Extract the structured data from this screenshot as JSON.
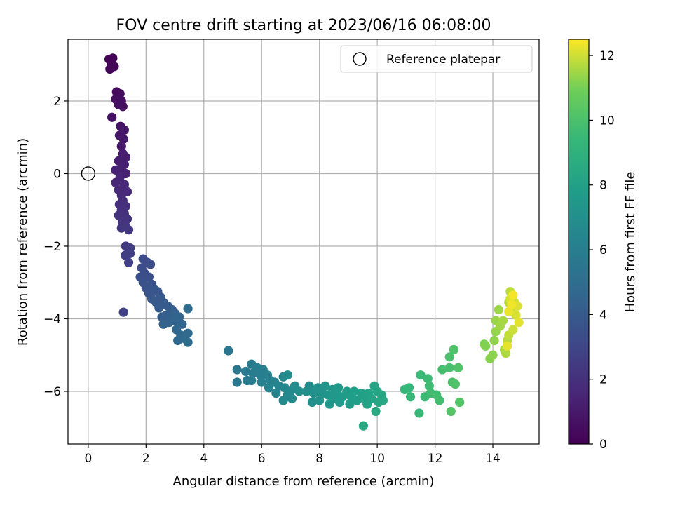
{
  "chart_data": {
    "type": "scatter",
    "title": "FOV centre drift starting at 2023/06/16 06:08:00",
    "xlabel": "Angular distance from reference (arcmin)",
    "ylabel": "Rotation from reference (arcmin)",
    "xlim": [
      -0.7,
      15.6
    ],
    "ylim": [
      -7.45,
      3.7
    ],
    "xticks": [
      0,
      2,
      4,
      6,
      8,
      10,
      12,
      14
    ],
    "yticks": [
      -6,
      -4,
      -2,
      0,
      2
    ],
    "xtick_labels": [
      "0",
      "2",
      "4",
      "6",
      "8",
      "10",
      "12",
      "14"
    ],
    "ytick_labels": [
      "−6",
      "−4",
      "−2",
      "0",
      "2"
    ],
    "grid": true,
    "legend": {
      "position": "top-right",
      "entries": [
        "Reference platepar"
      ]
    },
    "reference_point": {
      "name": "Reference platepar",
      "x": 0,
      "y": 0,
      "marker": "open-circle"
    },
    "colorbar": {
      "label": "Hours from first FF file",
      "range": [
        0,
        12.5
      ],
      "ticks": [
        0,
        2,
        4,
        6,
        8,
        10,
        12
      ],
      "tick_labels": [
        "0",
        "2",
        "4",
        "6",
        "8",
        "10",
        "12"
      ],
      "colormap": "viridis"
    },
    "series": [
      {
        "points": [
          [
            0.72,
            3.15,
            0.0
          ],
          [
            0.85,
            3.18,
            0.05
          ],
          [
            0.8,
            3.05,
            0.1
          ],
          [
            0.9,
            2.95,
            0.15
          ],
          [
            0.75,
            2.88,
            0.2
          ],
          [
            0.98,
            2.25,
            0.35
          ],
          [
            1.1,
            2.2,
            0.4
          ],
          [
            0.95,
            2.05,
            0.45
          ],
          [
            1.15,
            2.0,
            0.5
          ],
          [
            1.05,
            1.9,
            0.55
          ],
          [
            1.2,
            1.85,
            0.6
          ],
          [
            0.82,
            1.55,
            0.65
          ],
          [
            1.12,
            1.3,
            0.8
          ],
          [
            1.25,
            1.2,
            0.85
          ],
          [
            1.08,
            1.05,
            0.9
          ],
          [
            1.22,
            0.95,
            0.95
          ],
          [
            1.15,
            0.75,
            1.0
          ],
          [
            1.2,
            0.55,
            1.1
          ],
          [
            1.3,
            0.45,
            1.15
          ],
          [
            1.05,
            0.35,
            1.2
          ],
          [
            1.25,
            0.25,
            1.25
          ],
          [
            1.15,
            0.15,
            1.3
          ],
          [
            0.95,
            0.1,
            1.35
          ],
          [
            1.3,
            0.0,
            1.4
          ],
          [
            1.1,
            -0.1,
            1.5
          ],
          [
            0.95,
            -0.25,
            1.55
          ],
          [
            1.25,
            -0.3,
            1.6
          ],
          [
            1.05,
            -0.45,
            1.65
          ],
          [
            1.35,
            -0.5,
            1.7
          ],
          [
            1.15,
            -0.6,
            1.75
          ],
          [
            1.2,
            -0.75,
            1.85
          ],
          [
            1.08,
            -0.85,
            1.9
          ],
          [
            1.3,
            -0.9,
            1.95
          ],
          [
            1.15,
            -1.0,
            2.0
          ],
          [
            1.25,
            -1.1,
            2.05
          ],
          [
            1.05,
            -1.15,
            2.1
          ],
          [
            1.35,
            -1.25,
            2.15
          ],
          [
            1.18,
            -1.35,
            2.2
          ],
          [
            1.3,
            -1.45,
            2.25
          ],
          [
            1.15,
            -1.5,
            2.3
          ],
          [
            1.4,
            -1.55,
            2.35
          ],
          [
            1.3,
            -2.0,
            2.5
          ],
          [
            1.45,
            -2.05,
            2.55
          ],
          [
            1.28,
            -2.25,
            2.6
          ],
          [
            1.45,
            -2.2,
            2.65
          ],
          [
            1.4,
            -2.45,
            2.7
          ],
          [
            1.9,
            -2.35,
            3.2
          ],
          [
            2.05,
            -2.45,
            3.25
          ],
          [
            1.85,
            -2.6,
            3.3
          ],
          [
            2.15,
            -2.5,
            3.35
          ],
          [
            1.95,
            -2.75,
            3.4
          ],
          [
            1.8,
            -2.85,
            3.45
          ],
          [
            2.1,
            -2.85,
            3.5
          ],
          [
            1.9,
            -3.0,
            3.55
          ],
          [
            2.2,
            -3.05,
            3.6
          ],
          [
            2.0,
            -3.15,
            3.65
          ],
          [
            2.3,
            -3.2,
            3.7
          ],
          [
            2.1,
            -3.3,
            3.75
          ],
          [
            2.4,
            -3.25,
            3.8
          ],
          [
            2.2,
            -3.45,
            3.85
          ],
          [
            2.5,
            -3.4,
            3.9
          ],
          [
            2.35,
            -3.55,
            3.95
          ],
          [
            2.6,
            -3.55,
            4.0
          ],
          [
            2.45,
            -3.7,
            4.05
          ],
          [
            2.75,
            -3.65,
            4.1
          ],
          [
            2.9,
            -3.75,
            4.15
          ],
          [
            2.55,
            -3.95,
            4.2
          ],
          [
            2.7,
            -3.9,
            4.25
          ],
          [
            2.85,
            -4.0,
            4.3
          ],
          [
            3.0,
            -3.85,
            4.35
          ],
          [
            2.6,
            -4.15,
            4.4
          ],
          [
            2.8,
            -4.1,
            4.45
          ],
          [
            3.0,
            -4.05,
            4.5
          ],
          [
            3.15,
            -3.95,
            4.55
          ],
          [
            3.25,
            -4.15,
            4.6
          ],
          [
            3.05,
            -4.3,
            4.65
          ],
          [
            3.2,
            -4.45,
            4.7
          ],
          [
            3.1,
            -4.6,
            4.75
          ],
          [
            3.35,
            -4.55,
            4.8
          ],
          [
            3.45,
            -4.4,
            4.85
          ],
          [
            3.45,
            -4.65,
            4.9
          ],
          [
            3.45,
            -3.72,
            4.95
          ],
          [
            1.22,
            -3.82,
            2.8
          ],
          [
            4.85,
            -4.88,
            5.5
          ],
          [
            5.15,
            -5.4,
            5.6
          ],
          [
            5.15,
            -5.75,
            5.65
          ],
          [
            5.45,
            -5.45,
            5.7
          ],
          [
            5.5,
            -5.7,
            5.75
          ],
          [
            5.65,
            -5.25,
            5.8
          ],
          [
            5.7,
            -5.5,
            5.85
          ],
          [
            5.65,
            -5.7,
            5.9
          ],
          [
            5.85,
            -5.35,
            5.95
          ],
          [
            5.95,
            -5.55,
            6.0
          ],
          [
            6.05,
            -5.4,
            6.05
          ],
          [
            6.0,
            -5.75,
            6.1
          ],
          [
            6.2,
            -5.55,
            6.15
          ],
          [
            6.3,
            -5.7,
            6.2
          ],
          [
            6.25,
            -5.9,
            6.25
          ],
          [
            6.45,
            -5.75,
            6.3
          ],
          [
            6.5,
            -6.05,
            6.35
          ],
          [
            6.6,
            -5.85,
            6.4
          ],
          [
            6.75,
            -5.6,
            6.45
          ],
          [
            6.8,
            -5.9,
            6.5
          ],
          [
            6.9,
            -6.1,
            6.55
          ],
          [
            6.75,
            -6.25,
            6.6
          ],
          [
            7.0,
            -6.0,
            6.65
          ],
          [
            7.05,
            -6.2,
            6.7
          ],
          [
            6.9,
            -5.55,
            6.75
          ],
          [
            7.15,
            -5.85,
            6.8
          ],
          [
            7.3,
            -6.0,
            6.85
          ],
          [
            7.55,
            -6.0,
            6.9
          ],
          [
            7.65,
            -5.85,
            6.95
          ],
          [
            7.75,
            -6.3,
            7.0
          ],
          [
            7.8,
            -6.05,
            7.05
          ],
          [
            7.95,
            -5.9,
            7.1
          ],
          [
            8.0,
            -6.25,
            7.15
          ],
          [
            8.1,
            -6.05,
            7.2
          ],
          [
            8.2,
            -5.85,
            7.25
          ],
          [
            8.3,
            -6.1,
            7.3
          ],
          [
            8.35,
            -6.35,
            7.35
          ],
          [
            8.45,
            -5.95,
            7.4
          ],
          [
            8.5,
            -6.2,
            7.45
          ],
          [
            8.6,
            -6.05,
            7.5
          ],
          [
            8.65,
            -5.9,
            7.55
          ],
          [
            8.7,
            -6.3,
            7.6
          ],
          [
            8.8,
            -6.15,
            7.65
          ],
          [
            8.95,
            -6.0,
            7.7
          ],
          [
            9.05,
            -6.35,
            7.75
          ],
          [
            9.1,
            -6.15,
            7.8
          ],
          [
            9.2,
            -6.0,
            7.85
          ],
          [
            9.3,
            -6.25,
            7.9
          ],
          [
            9.45,
            -6.05,
            7.95
          ],
          [
            9.55,
            -6.2,
            8.0
          ],
          [
            9.65,
            -6.35,
            8.05
          ],
          [
            9.7,
            -6.05,
            8.1
          ],
          [
            9.8,
            -6.2,
            8.15
          ],
          [
            9.9,
            -5.85,
            8.2
          ],
          [
            10.0,
            -6.0,
            8.25
          ],
          [
            10.05,
            -6.3,
            8.3
          ],
          [
            10.15,
            -6.1,
            8.35
          ],
          [
            10.2,
            -6.25,
            8.4
          ],
          [
            9.52,
            -6.95,
            8.45
          ],
          [
            9.95,
            -6.55,
            8.5
          ],
          [
            10.95,
            -5.95,
            9.3
          ],
          [
            11.1,
            -5.9,
            9.35
          ],
          [
            11.15,
            -6.15,
            9.4
          ],
          [
            11.45,
            -6.6,
            9.45
          ],
          [
            11.5,
            -5.55,
            9.5
          ],
          [
            11.65,
            -6.15,
            9.55
          ],
          [
            11.75,
            -5.65,
            9.6
          ],
          [
            11.8,
            -5.85,
            9.65
          ],
          [
            11.85,
            -6.05,
            9.7
          ],
          [
            12.05,
            -6.1,
            9.75
          ],
          [
            12.15,
            -6.25,
            9.8
          ],
          [
            12.25,
            -5.4,
            9.85
          ],
          [
            12.5,
            -5.35,
            9.9
          ],
          [
            12.5,
            -5.05,
            9.95
          ],
          [
            12.6,
            -5.75,
            10.0
          ],
          [
            12.65,
            -4.85,
            10.05
          ],
          [
            12.7,
            -5.8,
            10.1
          ],
          [
            12.8,
            -5.35,
            10.15
          ],
          [
            12.85,
            -6.3,
            10.2
          ],
          [
            12.55,
            -6.55,
            10.25
          ],
          [
            13.7,
            -4.7,
            11.1
          ],
          [
            13.75,
            -4.75,
            11.15
          ],
          [
            13.9,
            -5.1,
            11.2
          ],
          [
            14.0,
            -5.0,
            11.25
          ],
          [
            14.05,
            -4.6,
            11.3
          ],
          [
            14.1,
            -4.35,
            11.35
          ],
          [
            14.1,
            -4.05,
            11.4
          ],
          [
            14.2,
            -3.75,
            11.45
          ],
          [
            14.25,
            -4.2,
            11.5
          ],
          [
            14.35,
            -4.05,
            11.55
          ],
          [
            14.4,
            -4.85,
            11.6
          ],
          [
            14.45,
            -4.95,
            11.65
          ],
          [
            14.5,
            -4.6,
            11.7
          ],
          [
            14.55,
            -3.55,
            11.75
          ],
          [
            14.6,
            -3.25,
            11.8
          ],
          [
            14.55,
            -4.45,
            11.85
          ],
          [
            14.65,
            -3.7,
            11.9
          ],
          [
            14.7,
            -4.3,
            11.95
          ],
          [
            14.75,
            -3.55,
            12.0
          ],
          [
            14.6,
            -3.45,
            12.05
          ],
          [
            14.8,
            -3.9,
            12.1
          ],
          [
            14.85,
            -3.65,
            12.15
          ],
          [
            14.9,
            -4.1,
            12.2
          ],
          [
            14.5,
            -4.75,
            12.25
          ],
          [
            14.55,
            -3.8,
            12.3
          ],
          [
            14.65,
            -3.6,
            12.35
          ],
          [
            14.7,
            -3.35,
            12.4
          ]
        ]
      }
    ]
  }
}
